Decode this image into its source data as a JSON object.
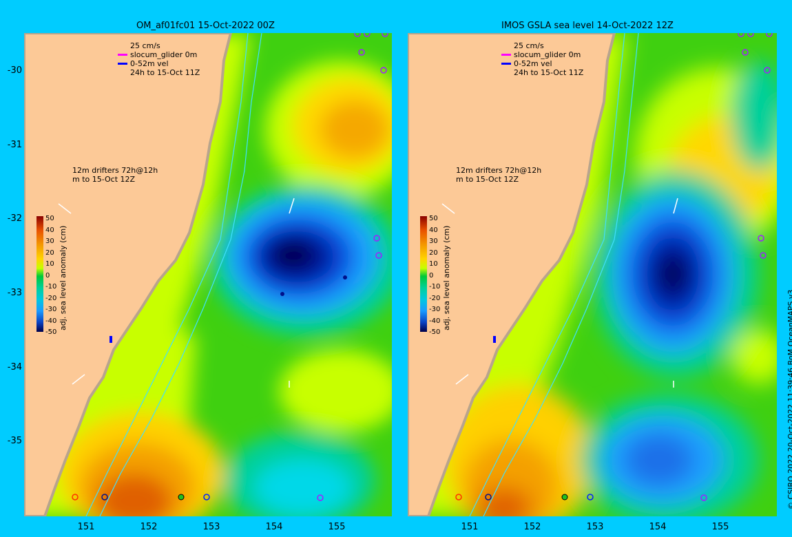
{
  "panels": [
    {
      "title": "OM_af01fc01 15-Oct-2022 00Z",
      "legend_lines": [
        "25 cm/s",
        "slocum_glider 0m",
        "0-52m vel",
        "24h to 15-Oct 11Z"
      ],
      "drifter_lines": [
        "12m drifters 72h@12h",
        "m to 15-Oct 12Z"
      ],
      "colorbar_label": "adj. sea level anomaly (cm)"
    },
    {
      "title": "IMOS GSLA sea level  14-Oct-2022 12Z",
      "legend_lines": [
        "25 cm/s",
        "slocum_glider 0m",
        "0-52m vel",
        "24h to 15-Oct 11Z"
      ],
      "drifter_lines": [
        "12m drifters 72h@12h",
        "m to 15-Oct 12Z"
      ],
      "colorbar_label": "adj. sea level anomaly (cm)"
    }
  ],
  "lat_ticks": [
    "-30",
    "-31",
    "-32",
    "-33",
    "-34",
    "-35"
  ],
  "lon_ticks": [
    "151",
    "152",
    "153",
    "154",
    "155"
  ],
  "colorbar_ticks": [
    "50",
    "40",
    "30",
    "20",
    "10",
    "0",
    "-10",
    "-20",
    "-30",
    "-40",
    "-50"
  ],
  "colors": {
    "background": "#00ccff",
    "land": "#fcc997",
    "ssla_ramp": [
      "#5a0000",
      "#b32400",
      "#e85000",
      "#f49a00",
      "#ffd400",
      "#c6ff00",
      "#6edc00",
      "#00c838",
      "#00d09a",
      "#00c8e0",
      "#1a9aff",
      "#0a50e0",
      "#00129a",
      "#00004a"
    ]
  },
  "credit": "© CSIRO 2022   20-Oct-2022 11:39:46 BoM OceanMAPS v3"
}
